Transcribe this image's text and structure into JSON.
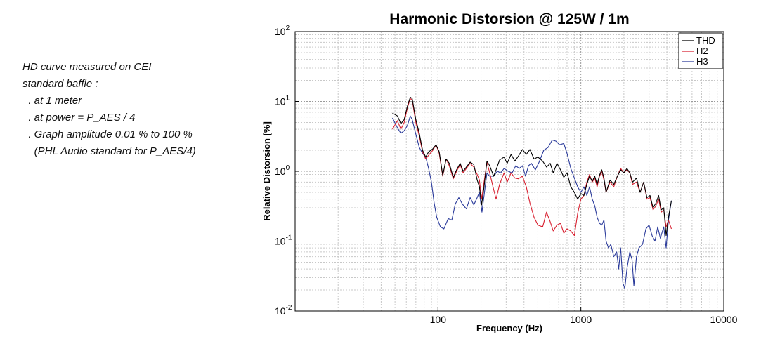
{
  "notes": {
    "lines": [
      "HD curve measured on CEI",
      "standard baffle :",
      "  . at 1 meter",
      "  . at power = P_AES / 4",
      "  . Graph amplitude 0.01 % to 100 %",
      "    (PHL Audio standard for P_AES/4)"
    ]
  },
  "chart_data": {
    "type": "line",
    "title": "Harmonic Distorsion @ 125W / 1m",
    "xlabel": "Frequency (Hz)",
    "ylabel": "Relative Distorsion [%]",
    "xscale": "log",
    "yscale": "log",
    "xlim": [
      10,
      10000
    ],
    "ylim": [
      0.01,
      100
    ],
    "xticks": [
      {
        "value": 100,
        "label": "100"
      },
      {
        "value": 1000,
        "label": "1000"
      },
      {
        "value": 10000,
        "label": "10000"
      }
    ],
    "yticks": [
      {
        "value": 100,
        "base": "10",
        "exp": "2"
      },
      {
        "value": 10,
        "base": "10",
        "exp": "1"
      },
      {
        "value": 1,
        "base": "10",
        "exp": "0"
      },
      {
        "value": 0.1,
        "base": "10",
        "exp": "-1"
      },
      {
        "value": 0.01,
        "base": "10",
        "exp": "-2"
      }
    ],
    "grid": true,
    "legend": "top-right",
    "series": [
      {
        "name": "THD",
        "color": "#000000",
        "points": [
          [
            48,
            6.8
          ],
          [
            52,
            6.2
          ],
          [
            55,
            4.8
          ],
          [
            58,
            5.5
          ],
          [
            61,
            8.5
          ],
          [
            64,
            11.5
          ],
          [
            66,
            11.0
          ],
          [
            70,
            5.5
          ],
          [
            74,
            3.5
          ],
          [
            78,
            2.0
          ],
          [
            82,
            1.6
          ],
          [
            86,
            1.9
          ],
          [
            92,
            2.1
          ],
          [
            97,
            2.4
          ],
          [
            102,
            1.9
          ],
          [
            108,
            0.88
          ],
          [
            114,
            1.5
          ],
          [
            120,
            1.3
          ],
          [
            128,
            0.82
          ],
          [
            135,
            1.05
          ],
          [
            143,
            1.3
          ],
          [
            150,
            1.0
          ],
          [
            158,
            1.15
          ],
          [
            168,
            1.35
          ],
          [
            178,
            1.25
          ],
          [
            188,
            0.75
          ],
          [
            195,
            0.6
          ],
          [
            202,
            0.33
          ],
          [
            210,
            0.6
          ],
          [
            220,
            1.4
          ],
          [
            230,
            1.2
          ],
          [
            245,
            0.85
          ],
          [
            255,
            1.05
          ],
          [
            270,
            1.45
          ],
          [
            290,
            1.6
          ],
          [
            305,
            1.3
          ],
          [
            325,
            1.75
          ],
          [
            345,
            1.4
          ],
          [
            365,
            1.65
          ],
          [
            390,
            2.05
          ],
          [
            415,
            1.75
          ],
          [
            440,
            2.05
          ],
          [
            470,
            1.5
          ],
          [
            500,
            1.6
          ],
          [
            540,
            1.4
          ],
          [
            575,
            1.15
          ],
          [
            610,
            1.3
          ],
          [
            640,
            0.95
          ],
          [
            680,
            1.3
          ],
          [
            720,
            1.05
          ],
          [
            760,
            0.82
          ],
          [
            800,
            0.95
          ],
          [
            850,
            0.6
          ],
          [
            900,
            0.5
          ],
          [
            950,
            0.4
          ],
          [
            1000,
            0.48
          ],
          [
            1050,
            0.45
          ],
          [
            1100,
            0.65
          ],
          [
            1150,
            0.85
          ],
          [
            1200,
            0.72
          ],
          [
            1250,
            0.85
          ],
          [
            1300,
            0.65
          ],
          [
            1350,
            0.88
          ],
          [
            1400,
            1.05
          ],
          [
            1450,
            0.8
          ],
          [
            1500,
            0.5
          ],
          [
            1600,
            0.75
          ],
          [
            1700,
            0.65
          ],
          [
            1800,
            0.85
          ],
          [
            1900,
            1.05
          ],
          [
            2000,
            0.95
          ],
          [
            2100,
            1.1
          ],
          [
            2200,
            0.95
          ],
          [
            2300,
            0.7
          ],
          [
            2450,
            0.8
          ],
          [
            2600,
            0.5
          ],
          [
            2750,
            0.7
          ],
          [
            2900,
            0.42
          ],
          [
            3050,
            0.45
          ],
          [
            3200,
            0.3
          ],
          [
            3350,
            0.35
          ],
          [
            3500,
            0.45
          ],
          [
            3650,
            0.28
          ],
          [
            3800,
            0.3
          ],
          [
            3950,
            0.12
          ],
          [
            4100,
            0.22
          ],
          [
            4300,
            0.38
          ]
        ]
      },
      {
        "name": "H2",
        "color": "#d82030",
        "points": [
          [
            48,
            4.0
          ],
          [
            52,
            5.3
          ],
          [
            55,
            4.0
          ],
          [
            58,
            5.0
          ],
          [
            61,
            8.0
          ],
          [
            64,
            11.0
          ],
          [
            66,
            10.5
          ],
          [
            70,
            5.0
          ],
          [
            74,
            3.2
          ],
          [
            78,
            1.9
          ],
          [
            82,
            1.5
          ],
          [
            86,
            1.7
          ],
          [
            92,
            2.0
          ],
          [
            97,
            2.4
          ],
          [
            102,
            1.8
          ],
          [
            108,
            0.85
          ],
          [
            114,
            1.5
          ],
          [
            120,
            1.2
          ],
          [
            128,
            0.78
          ],
          [
            135,
            1.0
          ],
          [
            143,
            1.25
          ],
          [
            150,
            0.95
          ],
          [
            158,
            1.1
          ],
          [
            168,
            1.3
          ],
          [
            178,
            1.15
          ],
          [
            188,
            0.9
          ],
          [
            195,
            0.75
          ],
          [
            202,
            0.4
          ],
          [
            210,
            0.7
          ],
          [
            220,
            1.35
          ],
          [
            230,
            0.95
          ],
          [
            245,
            0.55
          ],
          [
            255,
            0.4
          ],
          [
            270,
            0.65
          ],
          [
            290,
            0.95
          ],
          [
            305,
            0.7
          ],
          [
            325,
            0.95
          ],
          [
            345,
            0.8
          ],
          [
            365,
            0.78
          ],
          [
            390,
            0.85
          ],
          [
            415,
            0.6
          ],
          [
            440,
            0.35
          ],
          [
            470,
            0.22
          ],
          [
            500,
            0.17
          ],
          [
            540,
            0.16
          ],
          [
            575,
            0.26
          ],
          [
            610,
            0.19
          ],
          [
            640,
            0.14
          ],
          [
            680,
            0.17
          ],
          [
            720,
            0.18
          ],
          [
            760,
            0.13
          ],
          [
            800,
            0.15
          ],
          [
            850,
            0.14
          ],
          [
            900,
            0.12
          ],
          [
            950,
            0.25
          ],
          [
            1000,
            0.4
          ],
          [
            1050,
            0.45
          ],
          [
            1100,
            0.7
          ],
          [
            1150,
            0.9
          ],
          [
            1200,
            0.7
          ],
          [
            1250,
            0.8
          ],
          [
            1300,
            0.6
          ],
          [
            1350,
            0.85
          ],
          [
            1400,
            1.0
          ],
          [
            1450,
            0.75
          ],
          [
            1500,
            0.5
          ],
          [
            1600,
            0.7
          ],
          [
            1700,
            0.6
          ],
          [
            1800,
            0.85
          ],
          [
            1900,
            1.1
          ],
          [
            2000,
            0.95
          ],
          [
            2100,
            1.05
          ],
          [
            2200,
            0.95
          ],
          [
            2300,
            0.65
          ],
          [
            2450,
            0.7
          ],
          [
            2600,
            0.5
          ],
          [
            2750,
            0.7
          ],
          [
            2900,
            0.4
          ],
          [
            3050,
            0.42
          ],
          [
            3200,
            0.28
          ],
          [
            3350,
            0.32
          ],
          [
            3500,
            0.4
          ],
          [
            3650,
            0.26
          ],
          [
            3800,
            0.28
          ],
          [
            3950,
            0.16
          ],
          [
            4100,
            0.2
          ],
          [
            4300,
            0.15
          ]
        ]
      },
      {
        "name": "H3",
        "color": "#2a3a9a",
        "points": [
          [
            48,
            5.8
          ],
          [
            52,
            4.2
          ],
          [
            55,
            3.5
          ],
          [
            58,
            3.8
          ],
          [
            61,
            4.5
          ],
          [
            64,
            6.2
          ],
          [
            66,
            5.5
          ],
          [
            70,
            3.4
          ],
          [
            74,
            2.2
          ],
          [
            78,
            1.8
          ],
          [
            82,
            1.6
          ],
          [
            86,
            1.1
          ],
          [
            90,
            0.7
          ],
          [
            94,
            0.35
          ],
          [
            98,
            0.22
          ],
          [
            104,
            0.16
          ],
          [
            110,
            0.15
          ],
          [
            118,
            0.21
          ],
          [
            125,
            0.2
          ],
          [
            132,
            0.34
          ],
          [
            140,
            0.42
          ],
          [
            148,
            0.34
          ],
          [
            158,
            0.29
          ],
          [
            168,
            0.42
          ],
          [
            178,
            0.33
          ],
          [
            188,
            0.42
          ],
          [
            195,
            0.5
          ],
          [
            203,
            0.26
          ],
          [
            210,
            0.45
          ],
          [
            220,
            0.95
          ],
          [
            230,
            0.85
          ],
          [
            245,
            0.85
          ],
          [
            260,
            1.0
          ],
          [
            275,
            0.95
          ],
          [
            290,
            1.1
          ],
          [
            310,
            1.0
          ],
          [
            330,
            0.95
          ],
          [
            350,
            1.2
          ],
          [
            370,
            1.1
          ],
          [
            390,
            1.2
          ],
          [
            410,
            0.85
          ],
          [
            430,
            1.2
          ],
          [
            450,
            1.3
          ],
          [
            480,
            1.05
          ],
          [
            510,
            1.35
          ],
          [
            550,
            2.0
          ],
          [
            590,
            2.2
          ],
          [
            630,
            2.8
          ],
          [
            670,
            2.7
          ],
          [
            710,
            2.4
          ],
          [
            760,
            2.5
          ],
          [
            800,
            1.8
          ],
          [
            850,
            1.1
          ],
          [
            900,
            0.8
          ],
          [
            950,
            0.6
          ],
          [
            1000,
            0.5
          ],
          [
            1050,
            0.6
          ],
          [
            1100,
            0.45
          ],
          [
            1150,
            0.6
          ],
          [
            1200,
            0.4
          ],
          [
            1250,
            0.32
          ],
          [
            1300,
            0.22
          ],
          [
            1350,
            0.18
          ],
          [
            1400,
            0.17
          ],
          [
            1450,
            0.2
          ],
          [
            1500,
            0.1
          ],
          [
            1560,
            0.08
          ],
          [
            1620,
            0.09
          ],
          [
            1700,
            0.06
          ],
          [
            1780,
            0.07
          ],
          [
            1840,
            0.04
          ],
          [
            1900,
            0.08
          ],
          [
            1970,
            0.025
          ],
          [
            2030,
            0.021
          ],
          [
            2100,
            0.04
          ],
          [
            2200,
            0.07
          ],
          [
            2280,
            0.055
          ],
          [
            2350,
            0.023
          ],
          [
            2450,
            0.06
          ],
          [
            2550,
            0.08
          ],
          [
            2700,
            0.09
          ],
          [
            2850,
            0.15
          ],
          [
            3000,
            0.17
          ],
          [
            3150,
            0.12
          ],
          [
            3300,
            0.1
          ],
          [
            3450,
            0.16
          ],
          [
            3600,
            0.11
          ],
          [
            3800,
            0.16
          ],
          [
            3950,
            0.08
          ],
          [
            4100,
            0.2
          ],
          [
            4300,
            0.38
          ]
        ]
      }
    ]
  }
}
